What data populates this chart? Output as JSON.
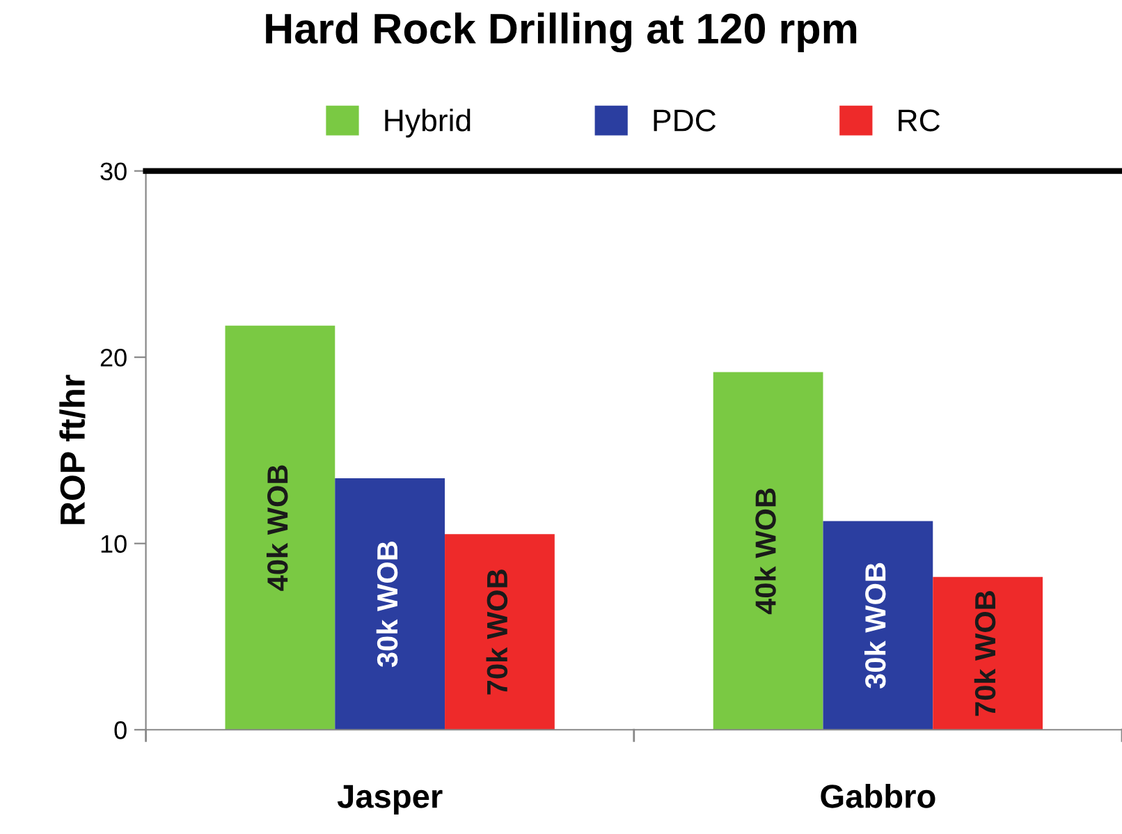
{
  "chart_data": {
    "type": "bar",
    "title": "Hard Rock Drilling at 120 rpm",
    "ylabel": "ROP ft/hr",
    "categories": [
      "Jasper",
      "Gabbro"
    ],
    "series": [
      {
        "name": "Hybrid",
        "color": "#7ac943",
        "values": [
          21.7,
          19.2
        ]
      },
      {
        "name": "PDC",
        "color": "#2b3ea0",
        "values": [
          13.5,
          11.2
        ]
      },
      {
        "name": "RC",
        "color": "#ee2a2a",
        "values": [
          10.5,
          8.2
        ]
      }
    ],
    "annotations": [
      "40k WOB",
      "40k WOB",
      "30k WOB",
      "30k WOB",
      "70k WOB",
      "70k WOB"
    ],
    "ylim": [
      0,
      30
    ],
    "yticks": [
      0,
      10,
      20,
      30
    ],
    "grid": false,
    "legend": "top"
  }
}
